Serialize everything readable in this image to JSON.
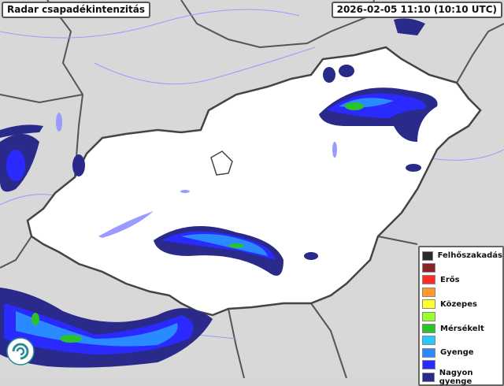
{
  "title": "Radar csapadékintenzitás",
  "timestamp": "2026-02-05 11:10 (10:10 UTC)",
  "legend": [
    {
      "label": "Felhőszakadás",
      "color": "#2a2a2a"
    },
    {
      "label": "",
      "color": "#8b2525"
    },
    {
      "label": "Erős",
      "color": "#ff2a2a"
    },
    {
      "label": "",
      "color": "#ff9a2a"
    },
    {
      "label": "Közepes",
      "color": "#ffff2a"
    },
    {
      "label": "",
      "color": "#9aff2a"
    },
    {
      "label": "Mérsékelt",
      "color": "#2ac42a"
    },
    {
      "label": "",
      "color": "#2ac8ff"
    },
    {
      "label": "Gyenge",
      "color": "#2a8aff"
    },
    {
      "label": "",
      "color": "#2a2aff"
    },
    {
      "label": "Nagyon gyenge",
      "color": "#2a2a8b"
    }
  ],
  "colors": {
    "country": "#ffffff",
    "surroundings": "#d6d6d6",
    "border": "#4a4a4a",
    "rivers": "#7a7aff"
  }
}
